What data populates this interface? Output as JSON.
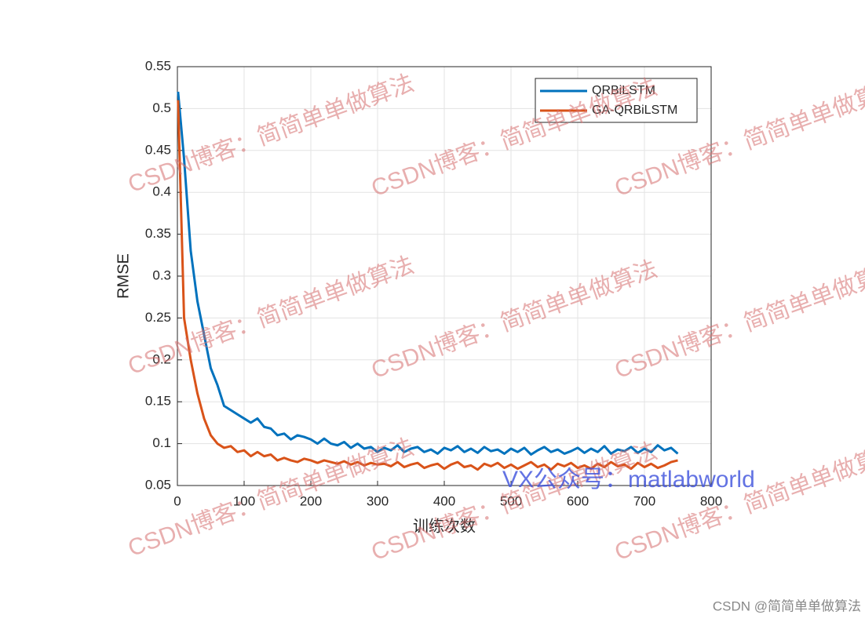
{
  "chart_data": {
    "type": "line",
    "xlabel": "训练次数",
    "ylabel": "RMSE",
    "x": [
      1,
      10,
      20,
      30,
      40,
      50,
      60,
      70,
      80,
      90,
      100,
      110,
      120,
      130,
      140,
      150,
      160,
      170,
      180,
      190,
      200,
      210,
      220,
      230,
      240,
      250,
      260,
      270,
      280,
      290,
      300,
      310,
      320,
      330,
      340,
      350,
      360,
      370,
      380,
      390,
      400,
      410,
      420,
      430,
      440,
      450,
      460,
      470,
      480,
      490,
      500,
      510,
      520,
      530,
      540,
      550,
      560,
      570,
      580,
      590,
      600,
      610,
      620,
      630,
      640,
      650,
      660,
      670,
      680,
      690,
      700,
      710,
      720,
      730,
      740,
      750
    ],
    "series": [
      {
        "name": "QRBiLSTM",
        "color": "#0072BD",
        "values": [
          0.52,
          0.44,
          0.33,
          0.27,
          0.23,
          0.19,
          0.17,
          0.145,
          0.14,
          0.135,
          0.13,
          0.125,
          0.13,
          0.12,
          0.118,
          0.11,
          0.112,
          0.105,
          0.11,
          0.108,
          0.105,
          0.1,
          0.106,
          0.1,
          0.098,
          0.102,
          0.095,
          0.1,
          0.094,
          0.096,
          0.09,
          0.095,
          0.092,
          0.098,
          0.09,
          0.094,
          0.096,
          0.09,
          0.093,
          0.088,
          0.095,
          0.092,
          0.097,
          0.09,
          0.094,
          0.089,
          0.096,
          0.091,
          0.093,
          0.088,
          0.094,
          0.09,
          0.095,
          0.087,
          0.092,
          0.096,
          0.09,
          0.093,
          0.088,
          0.091,
          0.095,
          0.089,
          0.094,
          0.09,
          0.097,
          0.088,
          0.093,
          0.091,
          0.096,
          0.089,
          0.094,
          0.09,
          0.098,
          0.092,
          0.095,
          0.088
        ]
      },
      {
        "name": "GA-QRBiLSTM",
        "color": "#D95319",
        "values": [
          0.51,
          0.25,
          0.2,
          0.16,
          0.13,
          0.11,
          0.1,
          0.095,
          0.097,
          0.09,
          0.092,
          0.085,
          0.09,
          0.085,
          0.087,
          0.08,
          0.083,
          0.08,
          0.078,
          0.082,
          0.08,
          0.077,
          0.08,
          0.078,
          0.076,
          0.079,
          0.075,
          0.078,
          0.074,
          0.077,
          0.075,
          0.076,
          0.073,
          0.078,
          0.072,
          0.075,
          0.077,
          0.071,
          0.074,
          0.076,
          0.07,
          0.075,
          0.078,
          0.072,
          0.074,
          0.069,
          0.076,
          0.073,
          0.077,
          0.071,
          0.075,
          0.07,
          0.074,
          0.078,
          0.072,
          0.075,
          0.069,
          0.076,
          0.073,
          0.077,
          0.071,
          0.074,
          0.07,
          0.076,
          0.072,
          0.078,
          0.073,
          0.075,
          0.07,
          0.077,
          0.072,
          0.076,
          0.071,
          0.074,
          0.078,
          0.08
        ]
      }
    ],
    "xlim": [
      0,
      800
    ],
    "xticks": [
      0,
      100,
      200,
      300,
      400,
      500,
      600,
      700,
      800
    ],
    "ylim": [
      0.05,
      0.55
    ],
    "yticks": [
      0.05,
      0.1,
      0.15,
      0.2,
      0.25,
      0.3,
      0.35,
      0.4,
      0.45,
      0.5,
      0.55
    ],
    "grid": true,
    "legend": "northeast"
  },
  "watermark": "CSDN博客：简简单单做算法",
  "vx_watermark": "VX公众号：matlabworld",
  "footer": "CSDN @简简单单做算法"
}
